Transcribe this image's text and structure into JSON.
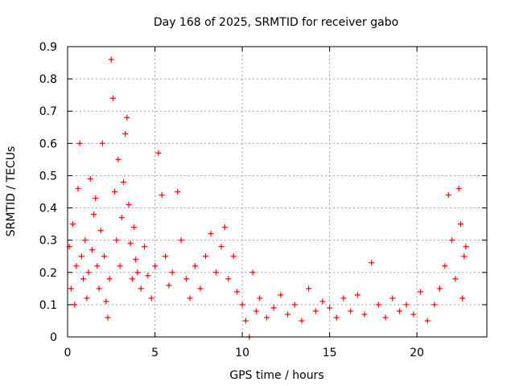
{
  "chart_data": {
    "type": "scatter",
    "title": "Day 168 of 2025, SRMTID for receiver gabo",
    "xlabel": "GPS time / hours",
    "ylabel": "SRMTID / TECUs",
    "xlim": [
      0,
      24
    ],
    "ylim": [
      0,
      0.9
    ],
    "xticks": [
      0,
      5,
      10,
      15,
      20
    ],
    "yticks": [
      0,
      0.1,
      0.2,
      0.3,
      0.4,
      0.5,
      0.6,
      0.7,
      0.8,
      0.9
    ],
    "grid": true,
    "marker": "plus",
    "color": "#ff0000",
    "series": [
      {
        "name": "SRMTID",
        "points": [
          [
            0.1,
            0.28
          ],
          [
            0.2,
            0.15
          ],
          [
            0.3,
            0.35
          ],
          [
            0.4,
            0.1
          ],
          [
            0.5,
            0.22
          ],
          [
            0.6,
            0.46
          ],
          [
            0.7,
            0.6
          ],
          [
            0.8,
            0.25
          ],
          [
            0.9,
            0.18
          ],
          [
            1.0,
            0.3
          ],
          [
            1.1,
            0.12
          ],
          [
            1.2,
            0.2
          ],
          [
            1.3,
            0.49
          ],
          [
            1.4,
            0.27
          ],
          [
            1.5,
            0.38
          ],
          [
            1.6,
            0.43
          ],
          [
            1.7,
            0.22
          ],
          [
            1.8,
            0.15
          ],
          [
            1.9,
            0.33
          ],
          [
            2.0,
            0.6
          ],
          [
            2.1,
            0.25
          ],
          [
            2.2,
            0.11
          ],
          [
            2.3,
            0.06
          ],
          [
            2.4,
            0.18
          ],
          [
            2.5,
            0.86
          ],
          [
            2.6,
            0.74
          ],
          [
            2.7,
            0.45
          ],
          [
            2.8,
            0.3
          ],
          [
            2.9,
            0.55
          ],
          [
            3.0,
            0.22
          ],
          [
            3.1,
            0.37
          ],
          [
            3.2,
            0.48
          ],
          [
            3.3,
            0.63
          ],
          [
            3.4,
            0.68
          ],
          [
            3.5,
            0.41
          ],
          [
            3.6,
            0.29
          ],
          [
            3.7,
            0.18
          ],
          [
            3.8,
            0.34
          ],
          [
            3.9,
            0.24
          ],
          [
            4.0,
            0.2
          ],
          [
            4.2,
            0.15
          ],
          [
            4.4,
            0.28
          ],
          [
            4.6,
            0.19
          ],
          [
            4.8,
            0.12
          ],
          [
            5.0,
            0.22
          ],
          [
            5.2,
            0.57
          ],
          [
            5.4,
            0.44
          ],
          [
            5.6,
            0.25
          ],
          [
            5.8,
            0.16
          ],
          [
            6.0,
            0.2
          ],
          [
            6.3,
            0.45
          ],
          [
            6.5,
            0.3
          ],
          [
            6.8,
            0.18
          ],
          [
            7.0,
            0.12
          ],
          [
            7.3,
            0.22
          ],
          [
            7.6,
            0.15
          ],
          [
            7.9,
            0.25
          ],
          [
            8.2,
            0.32
          ],
          [
            8.5,
            0.2
          ],
          [
            8.8,
            0.28
          ],
          [
            9.0,
            0.34
          ],
          [
            9.2,
            0.18
          ],
          [
            9.5,
            0.25
          ],
          [
            9.7,
            0.14
          ],
          [
            10.0,
            0.1
          ],
          [
            10.2,
            0.05
          ],
          [
            10.4,
            0.0
          ],
          [
            10.6,
            0.2
          ],
          [
            10.8,
            0.08
          ],
          [
            11.0,
            0.12
          ],
          [
            11.4,
            0.06
          ],
          [
            11.8,
            0.09
          ],
          [
            12.2,
            0.13
          ],
          [
            12.6,
            0.07
          ],
          [
            13.0,
            0.1
          ],
          [
            13.4,
            0.05
          ],
          [
            13.8,
            0.15
          ],
          [
            14.2,
            0.08
          ],
          [
            14.6,
            0.11
          ],
          [
            15.0,
            0.09
          ],
          [
            15.4,
            0.06
          ],
          [
            15.8,
            0.12
          ],
          [
            16.2,
            0.08
          ],
          [
            16.6,
            0.13
          ],
          [
            17.0,
            0.07
          ],
          [
            17.4,
            0.23
          ],
          [
            17.8,
            0.1
          ],
          [
            18.2,
            0.06
          ],
          [
            18.6,
            0.12
          ],
          [
            19.0,
            0.08
          ],
          [
            19.4,
            0.1
          ],
          [
            19.8,
            0.07
          ],
          [
            20.2,
            0.14
          ],
          [
            20.6,
            0.05
          ],
          [
            21.0,
            0.1
          ],
          [
            21.3,
            0.15
          ],
          [
            21.6,
            0.22
          ],
          [
            21.8,
            0.44
          ],
          [
            22.0,
            0.3
          ],
          [
            22.2,
            0.18
          ],
          [
            22.4,
            0.46
          ],
          [
            22.5,
            0.35
          ],
          [
            22.6,
            0.12
          ],
          [
            22.7,
            0.25
          ],
          [
            22.8,
            0.28
          ]
        ]
      }
    ]
  }
}
